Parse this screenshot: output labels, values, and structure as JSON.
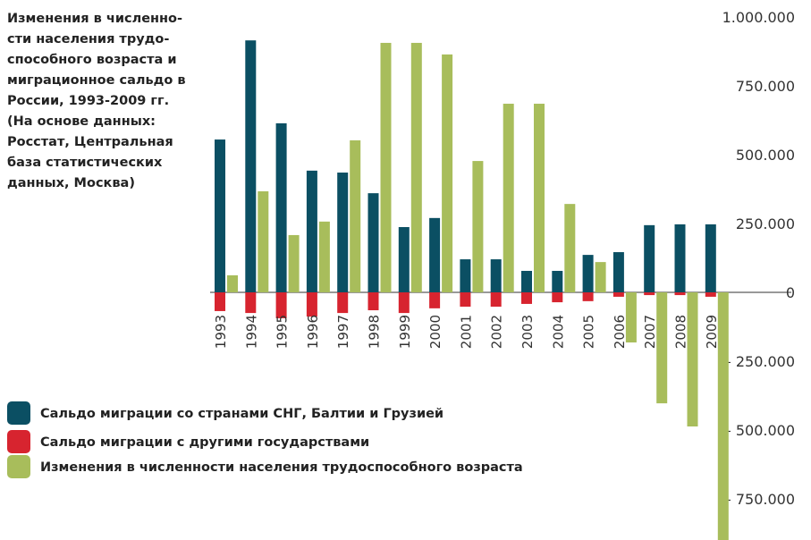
{
  "chart_data": {
    "type": "bar",
    "title": [
      "Изменения в численно-",
      "сти населения трудо-",
      "способного возраста и",
      "миграционное сальдо в",
      "России, 1993-2009 гг.",
      "(На основе данных:",
      "Росстат, Центральная",
      "база статистических",
      "данных, Москва)"
    ],
    "categories": [
      "1993",
      "1994",
      "1995",
      "1996",
      "1997",
      "1998",
      "1999",
      "2000",
      "2001",
      "2002",
      "2003",
      "2004",
      "2005",
      "2006",
      "2007",
      "2008",
      "2009"
    ],
    "series": [
      {
        "name": "Сальдо миграции со странами СНГ, Балтии и Грузией",
        "color": "#0b4f63",
        "values": [
          555000,
          915000,
          614000,
          442000,
          435000,
          360000,
          237000,
          270000,
          120000,
          120000,
          78000,
          78000,
          136000,
          146000,
          244000,
          247000,
          247000
        ]
      },
      {
        "name": "Сальдо миграции с другими государствами",
        "color": "#d7242f",
        "values": [
          -68000,
          -75000,
          -94000,
          -88000,
          -75000,
          -65000,
          -75000,
          -58000,
          -52000,
          -52000,
          -42000,
          -36000,
          -32000,
          -16000,
          -10000,
          -10000,
          -16000
        ]
      },
      {
        "name": "Изменения в численности населения трудоспособного возраста",
        "color": "#a8bd5b",
        "values": [
          62000,
          367000,
          208000,
          257000,
          552000,
          906000,
          906000,
          864000,
          477000,
          685000,
          685000,
          321000,
          110000,
          -182000,
          -403000,
          -487000,
          -900000
        ]
      }
    ],
    "ylim": [
      -900000,
      1000000
    ],
    "yticks": [
      {
        "value": 1000000,
        "label": "1.000.000"
      },
      {
        "value": 750000,
        "label": "750.000"
      },
      {
        "value": 500000,
        "label": "500.000"
      },
      {
        "value": 250000,
        "label": "250.000"
      },
      0,
      {
        "value": -250000,
        "label": "– 250.000"
      },
      {
        "value": -500000,
        "label": "– 500.000"
      },
      {
        "value": -750000,
        "label": "– 750.000"
      }
    ]
  }
}
